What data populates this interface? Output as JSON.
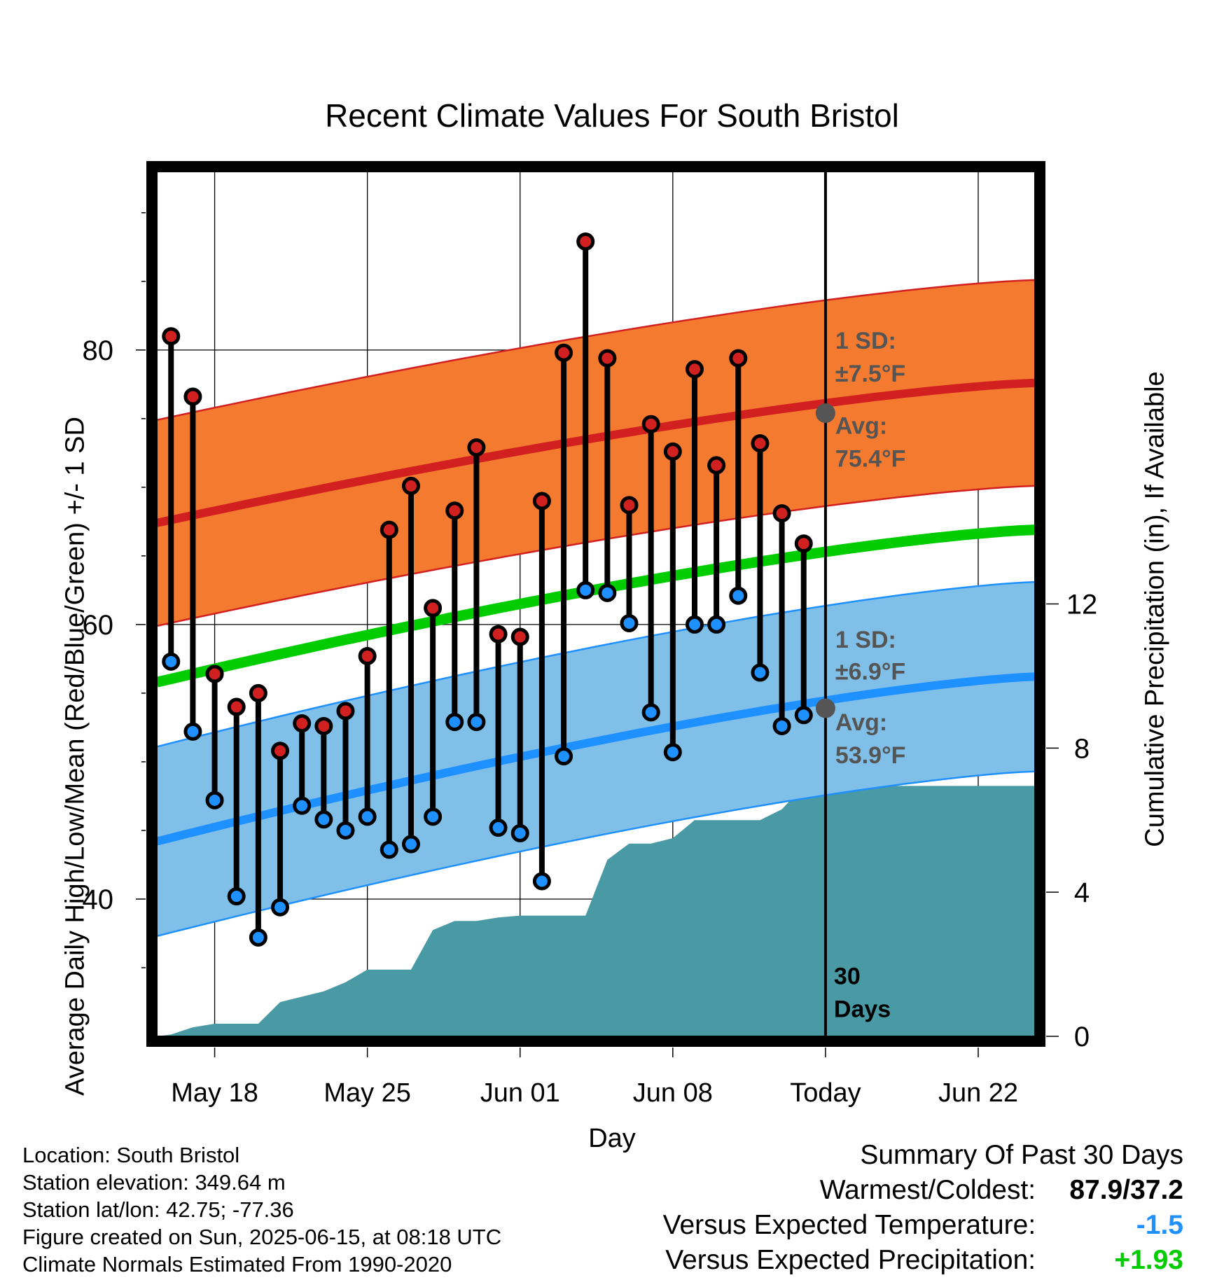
{
  "title": "Recent Climate Values For South Bristol",
  "y_label_left": "Average Daily High/Low/Mean (Red/Blue/Green) +/- 1 SD",
  "y_label_right": "Cumulative Precipitation (in), If Available",
  "x_label": "Day",
  "annotations": {
    "high_sd_line1": "1 SD:",
    "high_sd_line2": "±7.5°F",
    "high_avg_line1": "Avg:",
    "high_avg_line2": "75.4°F",
    "low_sd_line1": "1 SD:",
    "low_sd_line2": "±6.9°F",
    "low_avg_line1": "Avg:",
    "low_avg_line2": "53.9°F",
    "days_line1": "30",
    "days_line2": "Days"
  },
  "info": {
    "location": "Location: South Bristol",
    "elevation": "Station elevation: 349.64 m",
    "latlon": "Station lat/lon: 42.75; -77.36",
    "created": "Figure created on Sun, 2025-06-15, at 08:18 UTC",
    "normals": "Climate Normals Estimated From 1990-2020"
  },
  "summary": {
    "heading": "Summary Of Past 30 Days",
    "warmest_label": "Warmest/Coldest:",
    "warmest_value": "87.9/37.2",
    "temp_label": "Versus Expected Temperature:",
    "temp_value": "-1.5",
    "precip_label": "Versus Expected Precipitation:",
    "precip_value": "+1.93"
  },
  "colors": {
    "high_band": "#f47a30",
    "high_line": "#d22020",
    "low_band": "#80c0e8",
    "low_line": "#1e90ff",
    "mean_line": "#00cc00",
    "precip": "#4a9aa5",
    "high_dot": "#d02020",
    "low_dot": "#1e90ff"
  },
  "chart_data": {
    "type": "line",
    "x_tick_labels": [
      "May 18",
      "May 25",
      "Jun 01",
      "Jun 08",
      "Today",
      "Jun 22"
    ],
    "x_tick_days": [
      0,
      7,
      14,
      21,
      28,
      35
    ],
    "x_range_days": [
      -2.65,
      37.6
    ],
    "y_left_range": [
      30,
      93
    ],
    "y_left_ticks": [
      40,
      60,
      80
    ],
    "y_right_range": [
      0,
      24
    ],
    "y_right_ticks": [
      0,
      4,
      8,
      12
    ],
    "observed": {
      "days": [
        -2,
        -1,
        0,
        1,
        2,
        3,
        4,
        5,
        6,
        7,
        8,
        9,
        10,
        11,
        12,
        13,
        14,
        15,
        16,
        17,
        18,
        19,
        20,
        21,
        22,
        23,
        24,
        25,
        26,
        27
      ],
      "high": [
        81.0,
        76.6,
        56.4,
        54.0,
        55.0,
        50.8,
        52.8,
        52.6,
        53.7,
        57.7,
        66.9,
        70.1,
        61.2,
        68.3,
        72.9,
        59.3,
        59.1,
        69.0,
        79.8,
        87.9,
        79.4,
        68.7,
        74.6,
        72.6,
        78.6,
        71.6,
        79.4,
        73.2,
        68.1,
        65.9
      ],
      "low": [
        57.3,
        52.2,
        47.2,
        40.2,
        37.2,
        39.4,
        46.8,
        45.8,
        45.0,
        46.0,
        43.6,
        44.0,
        46.0,
        52.9,
        52.9,
        45.2,
        44.8,
        41.3,
        50.4,
        62.5,
        62.3,
        60.1,
        53.6,
        50.7,
        60.0,
        60.0,
        62.1,
        56.5,
        52.6,
        53.4
      ]
    },
    "normals": {
      "days": [
        -2.65,
        37.6
      ],
      "high_avg": [
        67.4,
        77.6
      ],
      "high_sd": 7.5,
      "low_avg": [
        44.2,
        56.2
      ],
      "low_sd": 6.9,
      "mean_avg": [
        55.8,
        66.9
      ]
    },
    "today_markers": {
      "high_avg": 75.4,
      "low_avg": 53.9
    },
    "precipitation": {
      "days": [
        -2.65,
        -2,
        -1,
        0,
        1,
        2,
        3,
        4,
        5,
        6,
        7,
        8,
        9,
        10,
        11,
        12,
        13,
        14,
        15,
        16,
        17,
        18,
        19,
        20,
        21,
        22,
        23,
        24,
        25,
        26,
        27,
        28,
        37.6
      ],
      "cumulative": [
        0.0,
        0.05,
        0.25,
        0.35,
        0.35,
        0.35,
        0.95,
        1.1,
        1.25,
        1.5,
        1.85,
        1.85,
        1.85,
        2.95,
        3.2,
        3.2,
        3.3,
        3.35,
        3.35,
        3.35,
        3.35,
        4.9,
        5.35,
        5.35,
        5.5,
        6.0,
        6.0,
        6.0,
        6.0,
        6.3,
        6.95,
        6.95,
        6.95
      ]
    }
  }
}
